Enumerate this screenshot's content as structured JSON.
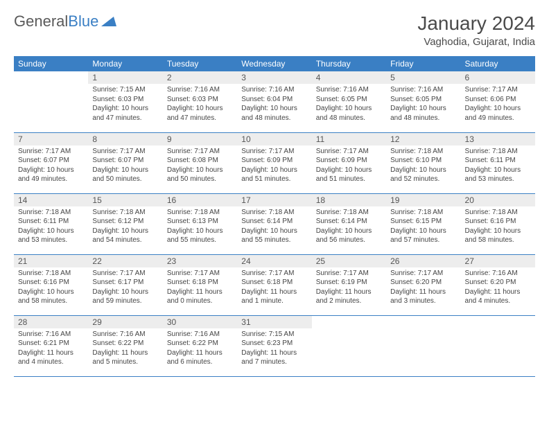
{
  "logo": {
    "text_gray": "General",
    "text_blue": "Blue"
  },
  "title": "January 2024",
  "location": "Vaghodia, Gujarat, India",
  "colors": {
    "header_bg": "#3a7fc4",
    "header_text": "#ffffff",
    "daynum_bg": "#ededed",
    "border": "#3a7fc4",
    "body_text": "#444444",
    "title_text": "#4a4a4a"
  },
  "fonts": {
    "title_size": 28,
    "location_size": 15,
    "dayhdr_size": 12,
    "body_size": 10
  },
  "day_headers": [
    "Sunday",
    "Monday",
    "Tuesday",
    "Wednesday",
    "Thursday",
    "Friday",
    "Saturday"
  ],
  "weeks": [
    [
      {
        "num": "",
        "sunrise": "",
        "sunset": "",
        "daylight": ""
      },
      {
        "num": "1",
        "sunrise": "Sunrise: 7:15 AM",
        "sunset": "Sunset: 6:03 PM",
        "daylight": "Daylight: 10 hours and 47 minutes."
      },
      {
        "num": "2",
        "sunrise": "Sunrise: 7:16 AM",
        "sunset": "Sunset: 6:03 PM",
        "daylight": "Daylight: 10 hours and 47 minutes."
      },
      {
        "num": "3",
        "sunrise": "Sunrise: 7:16 AM",
        "sunset": "Sunset: 6:04 PM",
        "daylight": "Daylight: 10 hours and 48 minutes."
      },
      {
        "num": "4",
        "sunrise": "Sunrise: 7:16 AM",
        "sunset": "Sunset: 6:05 PM",
        "daylight": "Daylight: 10 hours and 48 minutes."
      },
      {
        "num": "5",
        "sunrise": "Sunrise: 7:16 AM",
        "sunset": "Sunset: 6:05 PM",
        "daylight": "Daylight: 10 hours and 48 minutes."
      },
      {
        "num": "6",
        "sunrise": "Sunrise: 7:17 AM",
        "sunset": "Sunset: 6:06 PM",
        "daylight": "Daylight: 10 hours and 49 minutes."
      }
    ],
    [
      {
        "num": "7",
        "sunrise": "Sunrise: 7:17 AM",
        "sunset": "Sunset: 6:07 PM",
        "daylight": "Daylight: 10 hours and 49 minutes."
      },
      {
        "num": "8",
        "sunrise": "Sunrise: 7:17 AM",
        "sunset": "Sunset: 6:07 PM",
        "daylight": "Daylight: 10 hours and 50 minutes."
      },
      {
        "num": "9",
        "sunrise": "Sunrise: 7:17 AM",
        "sunset": "Sunset: 6:08 PM",
        "daylight": "Daylight: 10 hours and 50 minutes."
      },
      {
        "num": "10",
        "sunrise": "Sunrise: 7:17 AM",
        "sunset": "Sunset: 6:09 PM",
        "daylight": "Daylight: 10 hours and 51 minutes."
      },
      {
        "num": "11",
        "sunrise": "Sunrise: 7:17 AM",
        "sunset": "Sunset: 6:09 PM",
        "daylight": "Daylight: 10 hours and 51 minutes."
      },
      {
        "num": "12",
        "sunrise": "Sunrise: 7:18 AM",
        "sunset": "Sunset: 6:10 PM",
        "daylight": "Daylight: 10 hours and 52 minutes."
      },
      {
        "num": "13",
        "sunrise": "Sunrise: 7:18 AM",
        "sunset": "Sunset: 6:11 PM",
        "daylight": "Daylight: 10 hours and 53 minutes."
      }
    ],
    [
      {
        "num": "14",
        "sunrise": "Sunrise: 7:18 AM",
        "sunset": "Sunset: 6:11 PM",
        "daylight": "Daylight: 10 hours and 53 minutes."
      },
      {
        "num": "15",
        "sunrise": "Sunrise: 7:18 AM",
        "sunset": "Sunset: 6:12 PM",
        "daylight": "Daylight: 10 hours and 54 minutes."
      },
      {
        "num": "16",
        "sunrise": "Sunrise: 7:18 AM",
        "sunset": "Sunset: 6:13 PM",
        "daylight": "Daylight: 10 hours and 55 minutes."
      },
      {
        "num": "17",
        "sunrise": "Sunrise: 7:18 AM",
        "sunset": "Sunset: 6:14 PM",
        "daylight": "Daylight: 10 hours and 55 minutes."
      },
      {
        "num": "18",
        "sunrise": "Sunrise: 7:18 AM",
        "sunset": "Sunset: 6:14 PM",
        "daylight": "Daylight: 10 hours and 56 minutes."
      },
      {
        "num": "19",
        "sunrise": "Sunrise: 7:18 AM",
        "sunset": "Sunset: 6:15 PM",
        "daylight": "Daylight: 10 hours and 57 minutes."
      },
      {
        "num": "20",
        "sunrise": "Sunrise: 7:18 AM",
        "sunset": "Sunset: 6:16 PM",
        "daylight": "Daylight: 10 hours and 58 minutes."
      }
    ],
    [
      {
        "num": "21",
        "sunrise": "Sunrise: 7:18 AM",
        "sunset": "Sunset: 6:16 PM",
        "daylight": "Daylight: 10 hours and 58 minutes."
      },
      {
        "num": "22",
        "sunrise": "Sunrise: 7:17 AM",
        "sunset": "Sunset: 6:17 PM",
        "daylight": "Daylight: 10 hours and 59 minutes."
      },
      {
        "num": "23",
        "sunrise": "Sunrise: 7:17 AM",
        "sunset": "Sunset: 6:18 PM",
        "daylight": "Daylight: 11 hours and 0 minutes."
      },
      {
        "num": "24",
        "sunrise": "Sunrise: 7:17 AM",
        "sunset": "Sunset: 6:18 PM",
        "daylight": "Daylight: 11 hours and 1 minute."
      },
      {
        "num": "25",
        "sunrise": "Sunrise: 7:17 AM",
        "sunset": "Sunset: 6:19 PM",
        "daylight": "Daylight: 11 hours and 2 minutes."
      },
      {
        "num": "26",
        "sunrise": "Sunrise: 7:17 AM",
        "sunset": "Sunset: 6:20 PM",
        "daylight": "Daylight: 11 hours and 3 minutes."
      },
      {
        "num": "27",
        "sunrise": "Sunrise: 7:16 AM",
        "sunset": "Sunset: 6:20 PM",
        "daylight": "Daylight: 11 hours and 4 minutes."
      }
    ],
    [
      {
        "num": "28",
        "sunrise": "Sunrise: 7:16 AM",
        "sunset": "Sunset: 6:21 PM",
        "daylight": "Daylight: 11 hours and 4 minutes."
      },
      {
        "num": "29",
        "sunrise": "Sunrise: 7:16 AM",
        "sunset": "Sunset: 6:22 PM",
        "daylight": "Daylight: 11 hours and 5 minutes."
      },
      {
        "num": "30",
        "sunrise": "Sunrise: 7:16 AM",
        "sunset": "Sunset: 6:22 PM",
        "daylight": "Daylight: 11 hours and 6 minutes."
      },
      {
        "num": "31",
        "sunrise": "Sunrise: 7:15 AM",
        "sunset": "Sunset: 6:23 PM",
        "daylight": "Daylight: 11 hours and 7 minutes."
      },
      {
        "num": "",
        "sunrise": "",
        "sunset": "",
        "daylight": ""
      },
      {
        "num": "",
        "sunrise": "",
        "sunset": "",
        "daylight": ""
      },
      {
        "num": "",
        "sunrise": "",
        "sunset": "",
        "daylight": ""
      }
    ]
  ]
}
